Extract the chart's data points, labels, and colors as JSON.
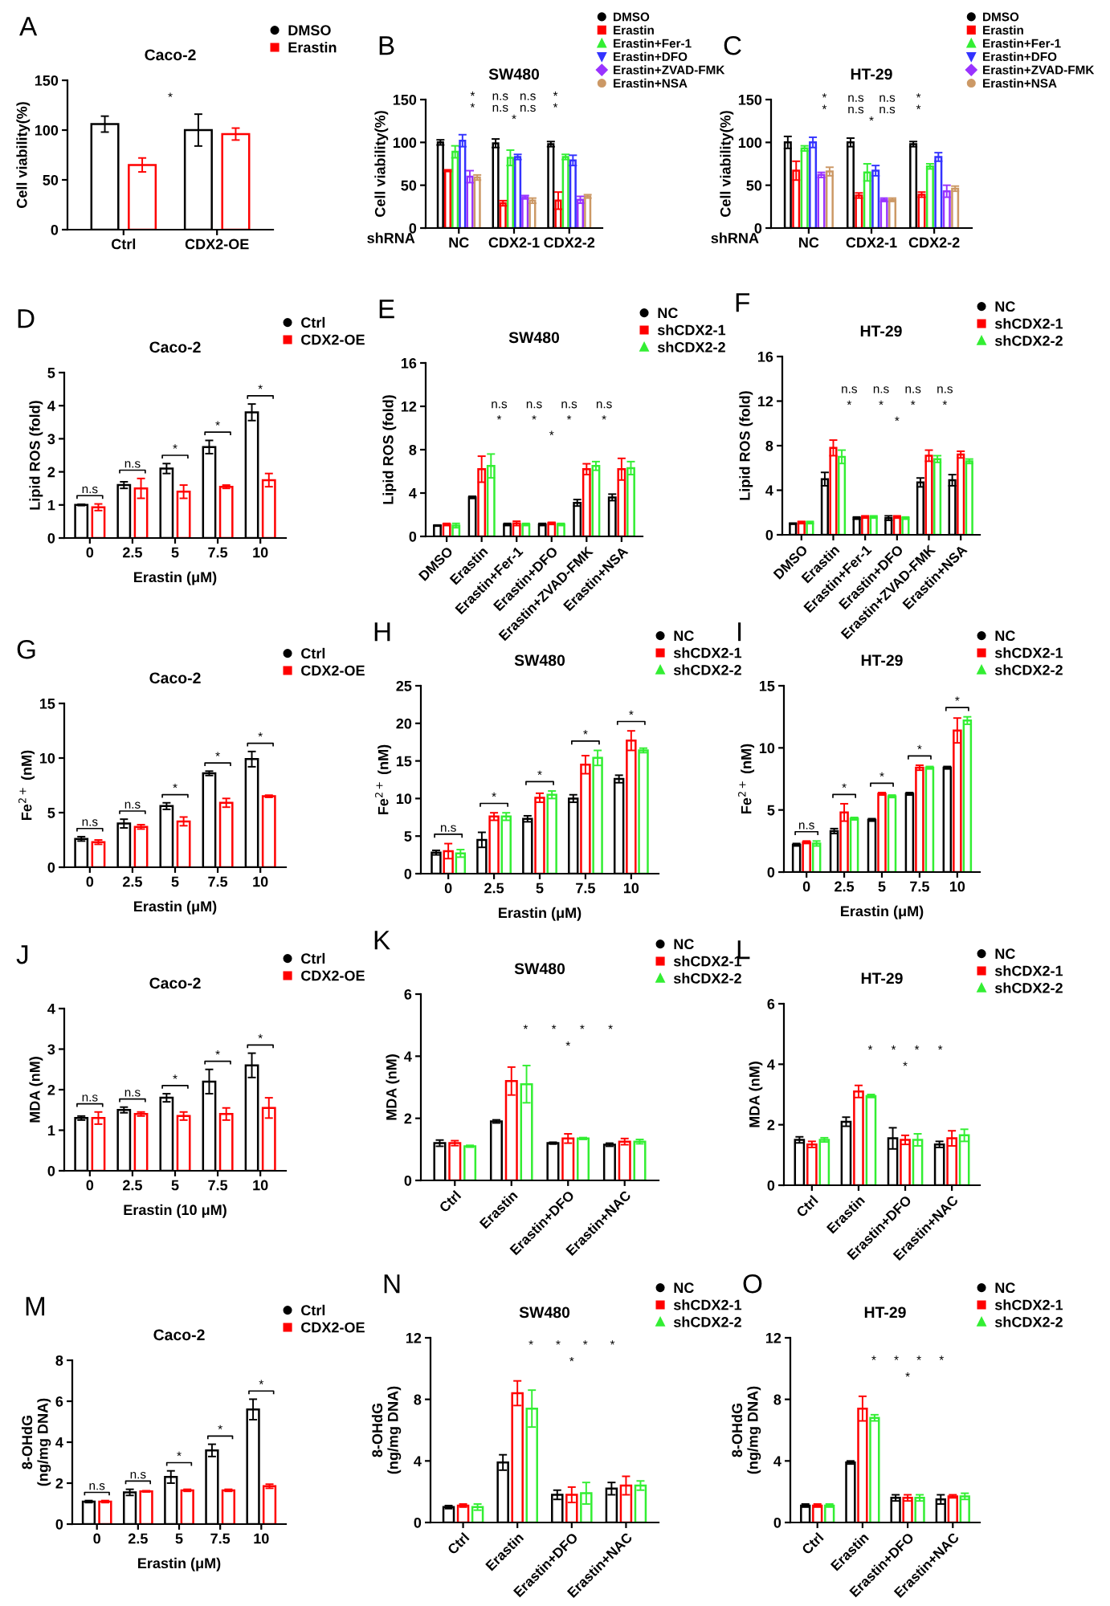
{
  "chart_data": [
    {
      "type": "bar",
      "title": "Caco-2",
      "ylabel": "Cell viability(%)",
      "categories": [
        "Ctrl",
        "CDX2-OE"
      ],
      "ylim": [
        0,
        150
      ],
      "yticks": [
        0,
        50,
        100,
        150
      ],
      "legend": "top right",
      "grid": false,
      "series": [
        {
          "name": "DMSO",
          "color": "#000000",
          "values": [
            106,
            100
          ],
          "errors": [
            8,
            16
          ]
        },
        {
          "name": "Erastin",
          "color": "#ff0000",
          "values": [
            65,
            96
          ],
          "errors": [
            7,
            6
          ]
        }
      ],
      "annotations": [
        "A",
        "*"
      ]
    },
    {
      "type": "bar",
      "title": "SW480",
      "xlabel": "shRNA",
      "ylabel": "Cell viability(%)",
      "categories": [
        "NC",
        "CDX2-1",
        "CDX2-2"
      ],
      "ylim": [
        0,
        150
      ],
      "yticks": [
        0,
        50,
        100,
        150
      ],
      "legend": "top right",
      "grid": false,
      "series": [
        {
          "name": "DMSO",
          "color": "#000000",
          "values": [
            100,
            99,
            98
          ],
          "errors": [
            3,
            5,
            3
          ]
        },
        {
          "name": "Erastin",
          "color": "#ff0000",
          "values": [
            67,
            29,
            32
          ],
          "errors": [
            1,
            3,
            10
          ]
        },
        {
          "name": "Erastin+Fer-1",
          "color": "#33ee33",
          "values": [
            89,
            82,
            83
          ],
          "errors": [
            7,
            9,
            3
          ]
        },
        {
          "name": "Erastin+DFO",
          "color": "#3333ff",
          "values": [
            102,
            83,
            79
          ],
          "errors": [
            7,
            3,
            6
          ]
        },
        {
          "name": "Erastin+ZVAD-FMK",
          "color": "#9933ff",
          "values": [
            60,
            36,
            33
          ],
          "errors": [
            7,
            2,
            4
          ]
        },
        {
          "name": "Erastin+NSA",
          "color": "#cc9966",
          "values": [
            59,
            32,
            37
          ],
          "errors": [
            3,
            3,
            2
          ]
        }
      ],
      "annotations": [
        "B",
        "*",
        "n.s",
        "n.s",
        "*",
        "*",
        "n.s",
        "n.s",
        "*",
        "*"
      ]
    },
    {
      "type": "bar",
      "title": "HT-29",
      "xlabel": "shRNA",
      "ylabel": "Cell viability(%)",
      "categories": [
        "NC",
        "CDX2-1",
        "CDX2-2"
      ],
      "ylim": [
        0,
        150
      ],
      "yticks": [
        0,
        50,
        100,
        150
      ],
      "legend": "top right",
      "grid": false,
      "series": [
        {
          "name": "DMSO",
          "color": "#000000",
          "values": [
            100,
            100,
            98
          ],
          "errors": [
            7,
            5,
            3
          ]
        },
        {
          "name": "Erastin",
          "color": "#ff0000",
          "values": [
            67,
            38,
            39
          ],
          "errors": [
            11,
            3,
            3
          ]
        },
        {
          "name": "Erastin+Fer-1",
          "color": "#33ee33",
          "values": [
            93,
            65,
            72
          ],
          "errors": [
            3,
            10,
            3
          ]
        },
        {
          "name": "Erastin+DFO",
          "color": "#3333ff",
          "values": [
            100,
            67,
            83
          ],
          "errors": [
            6,
            6,
            5
          ]
        },
        {
          "name": "Erastin+ZVAD-FMK",
          "color": "#9933ff",
          "values": [
            62,
            33,
            43
          ],
          "errors": [
            3,
            2,
            7
          ]
        },
        {
          "name": "Erastin+NSA",
          "color": "#cc9966",
          "values": [
            66,
            33,
            46
          ],
          "errors": [
            5,
            2,
            3
          ]
        }
      ],
      "annotations": [
        "C",
        "*",
        "n.s",
        "n.s",
        "*",
        "*",
        "n.s",
        "n.s",
        "*",
        "*"
      ]
    },
    {
      "type": "bar",
      "title": "Caco-2",
      "xlabel": "Erastin (μM)",
      "ylabel": "Lipid ROS (fold)",
      "categories": [
        "0",
        "2.5",
        "5",
        "7.5",
        "10"
      ],
      "ylim": [
        0,
        5
      ],
      "yticks": [
        0,
        1,
        2,
        3,
        4,
        5
      ],
      "legend": "top right",
      "grid": false,
      "series": [
        {
          "name": "Ctrl",
          "color": "#000000",
          "values": [
            1.0,
            1.6,
            2.1,
            2.75,
            3.8
          ],
          "errors": [
            0.02,
            0.1,
            0.15,
            0.2,
            0.25
          ]
        },
        {
          "name": "CDX2-OE",
          "color": "#ff0000",
          "values": [
            0.93,
            1.5,
            1.4,
            1.55,
            1.75
          ],
          "errors": [
            0.1,
            0.3,
            0.2,
            0.05,
            0.2
          ]
        }
      ],
      "annotations": [
        "D",
        "n.s",
        "n.s",
        "*",
        "*",
        "*"
      ]
    },
    {
      "type": "bar",
      "title": "SW480",
      "ylabel": "Lipid ROS (fold)",
      "categories": [
        "DMSO",
        "Erastin",
        "Erastin+Fer-1",
        "Erastin+DFO",
        "Erastin+ZVAD-FMK",
        "Erastin+NSA"
      ],
      "ylim": [
        0,
        16
      ],
      "yticks": [
        0,
        4,
        8,
        12,
        16
      ],
      "legend": "top right",
      "grid": false,
      "series": [
        {
          "name": "NC",
          "color": "#000000",
          "values": [
            1.0,
            3.6,
            1.1,
            1.1,
            3.1,
            3.6
          ],
          "errors": [
            0.05,
            0.1,
            0.1,
            0.1,
            0.3,
            0.3
          ]
        },
        {
          "name": "shCDX2-1",
          "color": "#ff0000",
          "values": [
            1.1,
            6.2,
            1.2,
            1.2,
            6.2,
            6.2
          ],
          "errors": [
            0.1,
            1.2,
            0.2,
            0.1,
            0.5,
            1.0
          ]
        },
        {
          "name": "shCDX2-2",
          "color": "#33ee33",
          "values": [
            1.0,
            6.5,
            1.1,
            1.1,
            6.5,
            6.3
          ],
          "errors": [
            0.2,
            1.1,
            0.1,
            0.1,
            0.4,
            0.6
          ]
        }
      ],
      "annotations": [
        "E",
        "n.s",
        "n.s",
        "n.s",
        "n.s",
        "*",
        "*",
        "*",
        "*",
        "*"
      ]
    },
    {
      "type": "bar",
      "title": "HT-29",
      "ylabel": "Lipid ROS (fold)",
      "categories": [
        "DMSO",
        "Erastin",
        "Erastin+Fer-1",
        "Erastin+DFO",
        "Erastin+ZVAD-FMK",
        "Erastin+NSA"
      ],
      "ylim": [
        0,
        16
      ],
      "yticks": [
        0,
        4,
        8,
        12,
        16
      ],
      "legend": "top right",
      "grid": false,
      "series": [
        {
          "name": "NC",
          "color": "#000000",
          "values": [
            1.0,
            5.0,
            1.5,
            1.5,
            4.7,
            4.9
          ],
          "errors": [
            0.05,
            0.6,
            0.1,
            0.2,
            0.4,
            0.5
          ]
        },
        {
          "name": "shCDX2-1",
          "color": "#ff0000",
          "values": [
            1.1,
            7.8,
            1.6,
            1.6,
            7.1,
            7.2
          ],
          "errors": [
            0.1,
            0.7,
            0.1,
            0.1,
            0.5,
            0.3
          ]
        },
        {
          "name": "shCDX2-2",
          "color": "#33ee33",
          "values": [
            1.1,
            7.0,
            1.6,
            1.5,
            6.8,
            6.6
          ],
          "errors": [
            0.1,
            0.6,
            0.1,
            0.1,
            0.3,
            0.2
          ]
        }
      ],
      "annotations": [
        "F",
        "n.s",
        "n.s",
        "n.s",
        "n.s",
        "*",
        "*",
        "*",
        "*",
        "*"
      ]
    },
    {
      "type": "bar",
      "title": "Caco-2",
      "xlabel": "Erastin (μM)",
      "ylabel": "Fe$^{2+}$ (nM)",
      "categories": [
        "0",
        "2.5",
        "5",
        "7.5",
        "10"
      ],
      "ylim": [
        0,
        15
      ],
      "yticks": [
        0,
        5,
        10,
        15
      ],
      "legend": "top right",
      "grid": false,
      "series": [
        {
          "name": "Ctrl",
          "color": "#000000",
          "values": [
            2.6,
            4.0,
            5.6,
            8.6,
            9.9
          ],
          "errors": [
            0.2,
            0.4,
            0.3,
            0.2,
            0.7
          ]
        },
        {
          "name": "CDX2-OE",
          "color": "#ff0000",
          "values": [
            2.3,
            3.7,
            4.2,
            5.9,
            6.5
          ],
          "errors": [
            0.2,
            0.2,
            0.4,
            0.4,
            0.1
          ]
        }
      ],
      "annotations": [
        "G",
        "n.s",
        "n.s",
        "*",
        "*",
        "*"
      ]
    },
    {
      "type": "bar",
      "title": "SW480",
      "xlabel": "Erastin (μM)",
      "ylabel": "Fe$^{2+}$ (nM)",
      "categories": [
        "0",
        "2.5",
        "5",
        "7.5",
        "10"
      ],
      "ylim": [
        0,
        25
      ],
      "yticks": [
        0,
        5,
        10,
        15,
        20,
        25
      ],
      "legend": "top right",
      "grid": false,
      "series": [
        {
          "name": "NC",
          "color": "#000000",
          "values": [
            2.8,
            4.5,
            7.3,
            10.0,
            12.6
          ],
          "errors": [
            0.3,
            1.0,
            0.4,
            0.5,
            0.5
          ]
        },
        {
          "name": "shCDX2-1",
          "color": "#ff0000",
          "values": [
            3.0,
            7.6,
            10.1,
            14.5,
            17.7
          ],
          "errors": [
            1.0,
            0.5,
            0.6,
            1.2,
            1.3
          ]
        },
        {
          "name": "shCDX2-2",
          "color": "#33ee33",
          "values": [
            2.7,
            7.6,
            10.5,
            15.4,
            16.4
          ],
          "errors": [
            0.5,
            0.5,
            0.5,
            1.0,
            0.3
          ]
        }
      ],
      "annotations": [
        "H",
        "n.s",
        "*",
        "*",
        "*",
        "*"
      ]
    },
    {
      "type": "bar",
      "title": "HT-29",
      "xlabel": "Erastin (μM)",
      "ylabel": "Fe$^{2+}$ (nM)",
      "categories": [
        "0",
        "2.5",
        "5",
        "7.5",
        "10"
      ],
      "ylim": [
        0,
        15
      ],
      "yticks": [
        0,
        5,
        10,
        15
      ],
      "legend": "top right",
      "grid": false,
      "series": [
        {
          "name": "NC",
          "color": "#000000",
          "values": [
            2.2,
            3.3,
            4.2,
            6.3,
            8.4
          ],
          "errors": [
            0.1,
            0.2,
            0.1,
            0.1,
            0.1
          ]
        },
        {
          "name": "shCDX2-1",
          "color": "#ff0000",
          "values": [
            2.4,
            4.8,
            6.3,
            8.4,
            11.4
          ],
          "errors": [
            0.1,
            0.7,
            0.1,
            0.2,
            1.0
          ]
        },
        {
          "name": "shCDX2-2",
          "color": "#33ee33",
          "values": [
            2.3,
            4.3,
            6.1,
            8.4,
            12.2
          ],
          "errors": [
            0.2,
            0.1,
            0.1,
            0.1,
            0.3
          ]
        }
      ],
      "annotations": [
        "I",
        "n.s",
        "*",
        "*",
        "*",
        "*"
      ]
    },
    {
      "type": "bar",
      "title": "Caco-2",
      "xlabel": "Erastin (10 μM)",
      "ylabel": "MDA (nM)",
      "categories": [
        "0",
        "2.5",
        "5",
        "7.5",
        "10"
      ],
      "ylim": [
        0,
        4
      ],
      "yticks": [
        0,
        1,
        2,
        3,
        4
      ],
      "legend": "top right",
      "grid": false,
      "series": [
        {
          "name": "Ctrl",
          "color": "#000000",
          "values": [
            1.3,
            1.5,
            1.8,
            2.2,
            2.6
          ],
          "errors": [
            0.05,
            0.07,
            0.1,
            0.3,
            0.3
          ]
        },
        {
          "name": "CDX2-OE",
          "color": "#ff0000",
          "values": [
            1.3,
            1.4,
            1.35,
            1.4,
            1.55
          ],
          "errors": [
            0.15,
            0.05,
            0.1,
            0.15,
            0.25
          ]
        }
      ],
      "annotations": [
        "J",
        "n.s",
        "n.s",
        "*",
        "*",
        "*"
      ]
    },
    {
      "type": "bar",
      "title": "SW480",
      "ylabel": "MDA (nM)",
      "categories": [
        "Ctrl",
        "Erastin",
        "Erastin+DFO",
        "Erastin+NAC"
      ],
      "ylim": [
        0,
        6
      ],
      "yticks": [
        0,
        2,
        4,
        6
      ],
      "legend": "top right",
      "grid": false,
      "series": [
        {
          "name": "NC",
          "color": "#000000",
          "values": [
            1.2,
            1.9,
            1.2,
            1.15
          ],
          "errors": [
            0.1,
            0.05,
            0.03,
            0.05
          ]
        },
        {
          "name": "shCDX2-1",
          "color": "#ff0000",
          "values": [
            1.2,
            3.2,
            1.35,
            1.25
          ],
          "errors": [
            0.08,
            0.45,
            0.15,
            0.1
          ]
        },
        {
          "name": "shCDX2-2",
          "color": "#33ee33",
          "values": [
            1.1,
            3.1,
            1.35,
            1.25
          ],
          "errors": [
            0.03,
            0.6,
            0.03,
            0.07
          ]
        }
      ],
      "annotations": [
        "K",
        "*",
        "*",
        "*",
        "*",
        "*"
      ]
    },
    {
      "type": "bar",
      "title": "HT-29",
      "ylabel": "MDA (nM)",
      "categories": [
        "Ctrl",
        "Erastin",
        "Erastin+DFO",
        "Erastin+NAC"
      ],
      "ylim": [
        0,
        6
      ],
      "yticks": [
        0,
        2,
        4,
        6
      ],
      "legend": "top right",
      "grid": false,
      "series": [
        {
          "name": "NC",
          "color": "#000000",
          "values": [
            1.5,
            2.1,
            1.55,
            1.35
          ],
          "errors": [
            0.1,
            0.15,
            0.35,
            0.1
          ]
        },
        {
          "name": "shCDX2-1",
          "color": "#ff0000",
          "values": [
            1.35,
            3.1,
            1.5,
            1.55
          ],
          "errors": [
            0.1,
            0.2,
            0.15,
            0.25
          ]
        },
        {
          "name": "shCDX2-2",
          "color": "#33ee33",
          "values": [
            1.5,
            2.95,
            1.5,
            1.65
          ],
          "errors": [
            0.07,
            0.05,
            0.2,
            0.2
          ]
        }
      ],
      "annotations": [
        "L",
        "*",
        "*",
        "*",
        "*",
        "*"
      ]
    },
    {
      "type": "bar",
      "title": "Caco-2",
      "xlabel": "Erastin (μM)",
      "ylabel": "8-OHdG\n(ng/mg DNA)",
      "categories": [
        "0",
        "2.5",
        "5",
        "7.5",
        "10"
      ],
      "ylim": [
        0,
        8
      ],
      "yticks": [
        0,
        2,
        4,
        6,
        8
      ],
      "legend": "top right",
      "grid": false,
      "series": [
        {
          "name": "Ctrl",
          "color": "#000000",
          "values": [
            1.1,
            1.55,
            2.3,
            3.6,
            5.6
          ],
          "errors": [
            0.05,
            0.15,
            0.3,
            0.3,
            0.5
          ]
        },
        {
          "name": "CDX2-OE",
          "color": "#ff0000",
          "values": [
            1.1,
            1.6,
            1.65,
            1.65,
            1.85
          ],
          "errors": [
            0.05,
            0.03,
            0.05,
            0.05,
            0.1
          ]
        }
      ],
      "annotations": [
        "M",
        "n.s",
        "n.s",
        "*",
        "*",
        "*"
      ]
    },
    {
      "type": "bar",
      "title": "SW480",
      "ylabel": "8-OHdG\n(ng/mg DNA)",
      "categories": [
        "Ctrl",
        "Erastin",
        "Erastin+DFO",
        "Erastin+NAC"
      ],
      "ylim": [
        0,
        12
      ],
      "yticks": [
        0,
        4,
        8,
        12
      ],
      "legend": "top right",
      "grid": false,
      "series": [
        {
          "name": "NC",
          "color": "#000000",
          "values": [
            1.0,
            3.9,
            1.8,
            2.2
          ],
          "errors": [
            0.1,
            0.5,
            0.3,
            0.4
          ]
        },
        {
          "name": "shCDX2-1",
          "color": "#ff0000",
          "values": [
            1.1,
            8.4,
            1.8,
            2.4
          ],
          "errors": [
            0.1,
            0.8,
            0.5,
            0.6
          ]
        },
        {
          "name": "shCDX2-2",
          "color": "#33ee33",
          "values": [
            1.0,
            7.4,
            1.9,
            2.4
          ],
          "errors": [
            0.2,
            1.2,
            0.7,
            0.3
          ]
        }
      ],
      "annotations": [
        "N",
        "*",
        "*",
        "*",
        "*",
        "*"
      ]
    },
    {
      "type": "bar",
      "title": "HT-29",
      "ylabel": "8-OHdG\n(ng/mg DNA)",
      "categories": [
        "Ctrl",
        "Erastin",
        "Erastin+DFO",
        "Erastin+NAC"
      ],
      "ylim": [
        0,
        12
      ],
      "yticks": [
        0,
        4,
        8,
        12
      ],
      "legend": "top right",
      "grid": false,
      "series": [
        {
          "name": "NC",
          "color": "#000000",
          "values": [
            1.1,
            3.9,
            1.6,
            1.5
          ],
          "errors": [
            0.1,
            0.1,
            0.2,
            0.3
          ]
        },
        {
          "name": "shCDX2-1",
          "color": "#ff0000",
          "values": [
            1.1,
            7.4,
            1.6,
            1.7
          ],
          "errors": [
            0.1,
            0.8,
            0.2,
            0.1
          ]
        },
        {
          "name": "shCDX2-2",
          "color": "#33ee33",
          "values": [
            1.1,
            6.8,
            1.6,
            1.7
          ],
          "errors": [
            0.1,
            0.2,
            0.2,
            0.2
          ]
        }
      ],
      "annotations": [
        "O",
        "*",
        "*",
        "*",
        "*",
        "*"
      ]
    }
  ]
}
